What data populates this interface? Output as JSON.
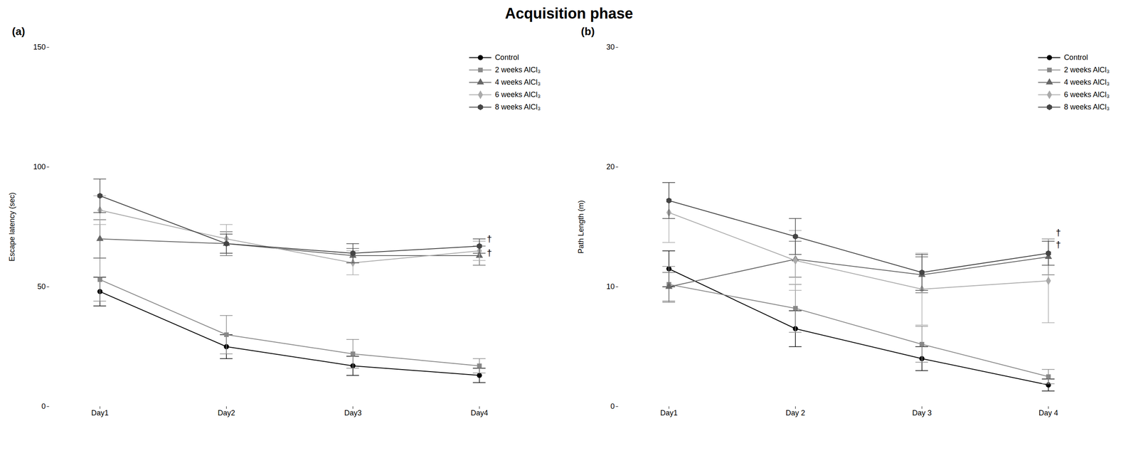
{
  "title": "Acquisition phase",
  "chart_data": [
    {
      "type": "line",
      "title": "(a)",
      "categories": [
        "Day1",
        "Day2",
        "Day3",
        "Day4"
      ],
      "y_label": "Escape latency (sec)",
      "ylim": [
        0,
        150
      ],
      "yticks": [
        0,
        50,
        100,
        150
      ],
      "grid": false,
      "legend": "upper right",
      "series": [
        {
          "name": "Control",
          "color": "#000000",
          "marker": "circle",
          "values": [
            48,
            25,
            17,
            13
          ],
          "errors": [
            6,
            5,
            4,
            3
          ]
        },
        {
          "name": "2 weeks AlCl₃",
          "color": "#888888",
          "marker": "square",
          "values": [
            53,
            30,
            22,
            17
          ],
          "errors": [
            9,
            8,
            6,
            3
          ]
        },
        {
          "name": "4 weeks AlCl₃",
          "color": "#666666",
          "marker": "triangle",
          "values": [
            70,
            68,
            63,
            63
          ],
          "errors": [
            8,
            5,
            3,
            4
          ]
        },
        {
          "name": "6 weeks AlCl₃",
          "color": "#aaaaaa",
          "marker": "diamond",
          "values": [
            82,
            70,
            60,
            65
          ],
          "errors": [
            6,
            6,
            5,
            4
          ]
        },
        {
          "name": "8 weeks AlCl₃",
          "color": "#444444",
          "marker": "hexagon",
          "values": [
            88,
            68,
            64,
            67
          ],
          "errors": [
            7,
            4,
            4,
            3
          ]
        }
      ],
      "annotations": [
        {
          "text": "†",
          "x": "Day4",
          "y": 70
        },
        {
          "text": "†",
          "x": "Day4",
          "y": 64
        }
      ]
    },
    {
      "type": "line",
      "title": "(b)",
      "categories": [
        "Day1",
        "Day 2",
        "Day 3",
        "Day 4"
      ],
      "y_label": "Path Length (m)",
      "ylim": [
        0,
        30
      ],
      "yticks": [
        0,
        10,
        20,
        30
      ],
      "grid": false,
      "legend": "upper right",
      "series": [
        {
          "name": "Control",
          "color": "#000000",
          "marker": "circle",
          "values": [
            11.5,
            6.5,
            4.0,
            1.8
          ],
          "errors": [
            1.5,
            1.5,
            1.0,
            0.5
          ]
        },
        {
          "name": "2 weeks AlCl₃",
          "color": "#888888",
          "marker": "square",
          "values": [
            10.2,
            8.2,
            5.2,
            2.5
          ],
          "errors": [
            1.5,
            2.0,
            1.5,
            0.6
          ]
        },
        {
          "name": "4 weeks AlCl₃",
          "color": "#666666",
          "marker": "triangle",
          "values": [
            10.0,
            12.3,
            11.0,
            12.5
          ],
          "errors": [
            1.2,
            1.5,
            1.5,
            1.5
          ]
        },
        {
          "name": "6 weeks AlCl₃",
          "color": "#aaaaaa",
          "marker": "diamond",
          "values": [
            16.2,
            12.2,
            9.8,
            10.5
          ],
          "errors": [
            2.5,
            2.5,
            3.0,
            3.5
          ]
        },
        {
          "name": "8 weeks AlCl₃",
          "color": "#444444",
          "marker": "hexagon",
          "values": [
            17.2,
            14.2,
            11.2,
            12.8
          ],
          "errors": [
            1.5,
            1.5,
            1.5,
            1.0
          ]
        }
      ],
      "annotations": [
        {
          "text": "†",
          "x": "Day 4",
          "y": 14.5
        },
        {
          "text": "†",
          "x": "Day 4",
          "y": 13.5
        }
      ]
    }
  ]
}
